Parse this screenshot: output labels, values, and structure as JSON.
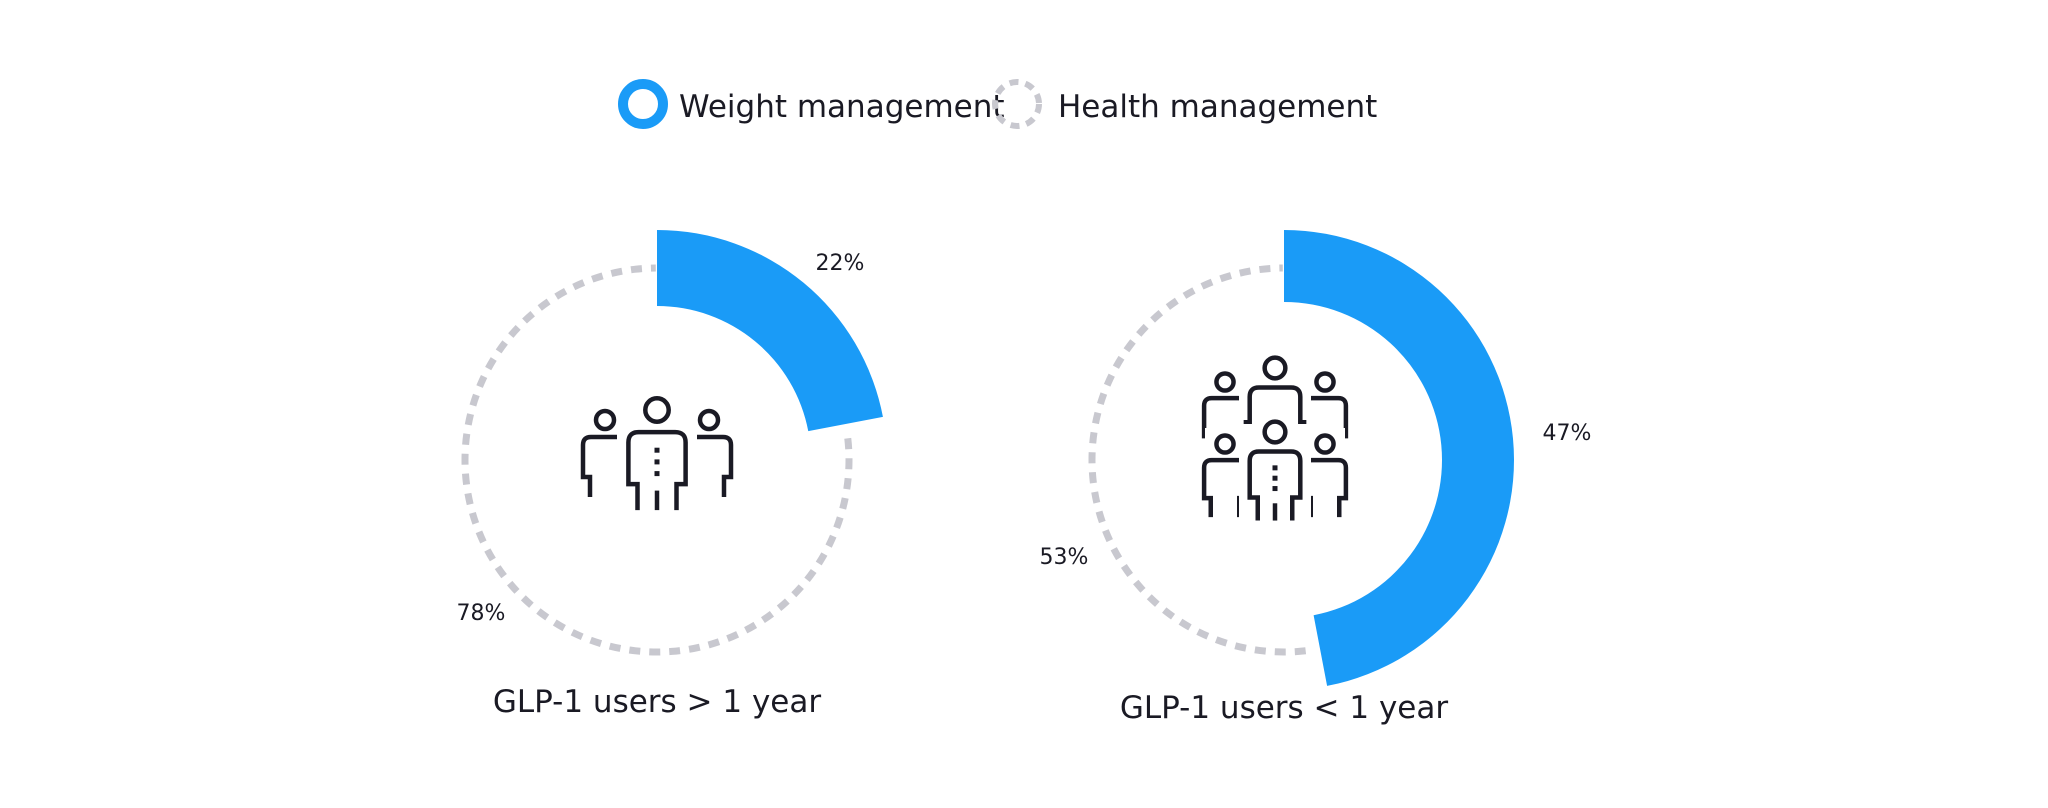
{
  "colors": {
    "weight": "#1a9bf7",
    "health": "#c8c8cf",
    "icon": "#1a1a24"
  },
  "legend": [
    {
      "label": "Weight management",
      "style": "solid"
    },
    {
      "label": "Health management",
      "style": "dashed"
    }
  ],
  "chart_data": [
    {
      "type": "pie",
      "title": "GLP-1 users > 1 year",
      "icon": "group-of-three-people-icon",
      "slices": [
        {
          "name": "Weight management",
          "value": 22,
          "label": "22%"
        },
        {
          "name": "Health management",
          "value": 78,
          "label": "78%"
        }
      ]
    },
    {
      "type": "pie",
      "title": "GLP-1 users < 1 year",
      "icon": "group-of-six-people-icon",
      "slices": [
        {
          "name": "Weight management",
          "value": 47,
          "label": "47%"
        },
        {
          "name": "Health management",
          "value": 53,
          "label": "53%"
        }
      ]
    }
  ]
}
